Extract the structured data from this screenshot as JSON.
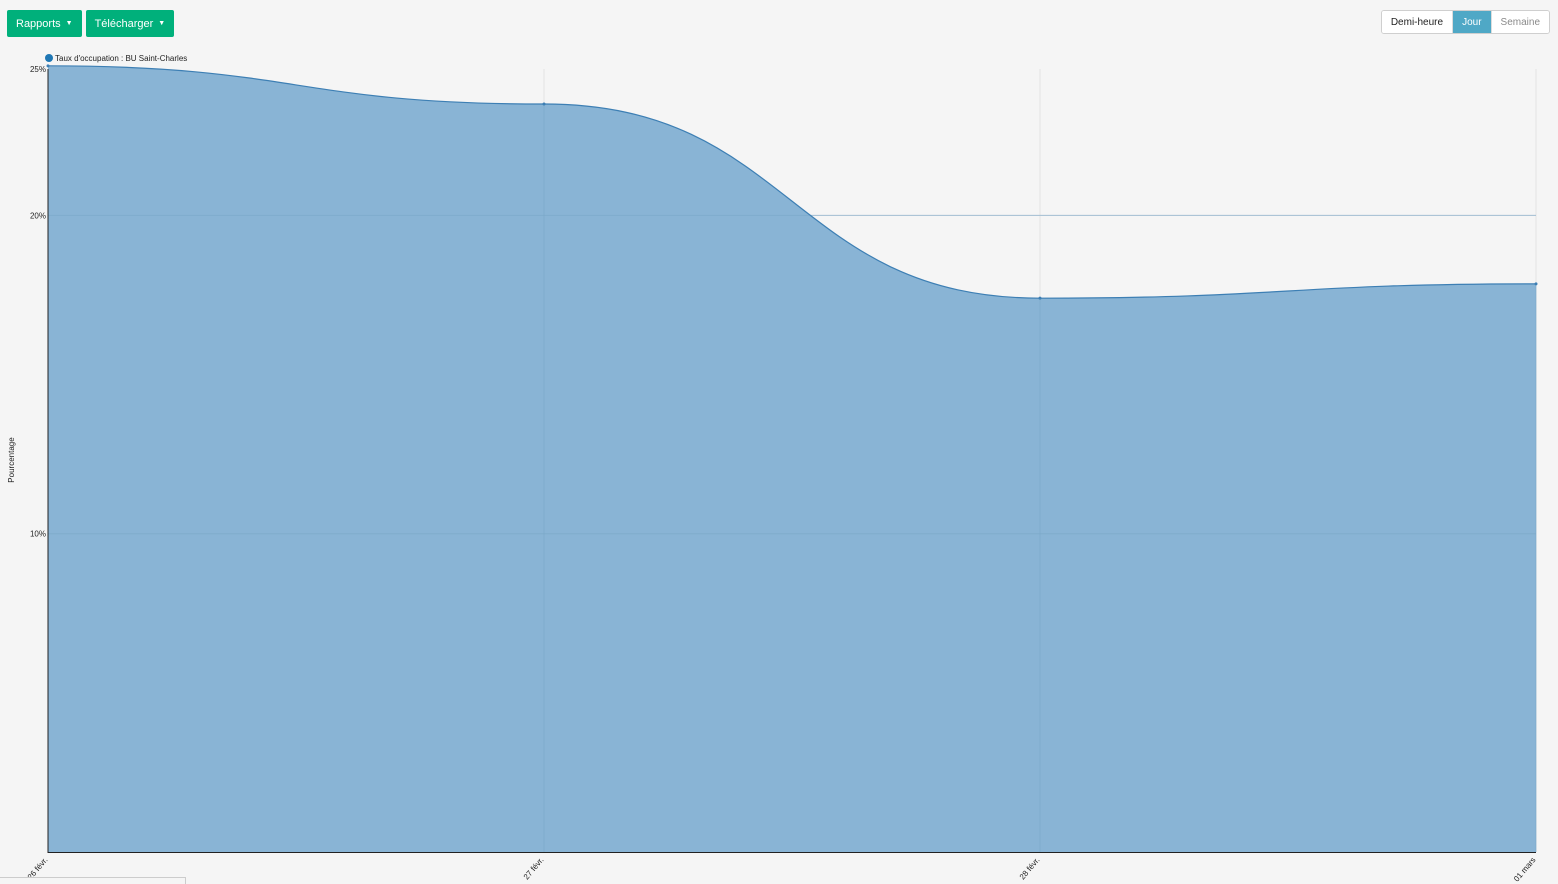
{
  "toolbar": {
    "rapports_label": "Rapports",
    "telecharger_label": "Télécharger",
    "granularity": [
      "Demi-heure",
      "Jour",
      "Semaine"
    ],
    "active_granularity": "Jour"
  },
  "chart_data": {
    "type": "area",
    "title": "",
    "xlabel": "",
    "ylabel": "Pourcentage",
    "legend": {
      "position": "top-left",
      "entries": [
        "Taux d'occupation : BU Saint-Charles"
      ]
    },
    "categories": [
      "26 févr.",
      "27 févr.",
      "28 févr.",
      "01 mars"
    ],
    "series": [
      {
        "name": "Taux d'occupation : BU Saint-Charles",
        "values": [
          24.7,
          23.5,
          17.4,
          17.85
        ],
        "color": "#1f77b4"
      }
    ],
    "ylim": [
      0,
      24.6
    ],
    "yticks": [
      10,
      20,
      25
    ],
    "ytick_labels": [
      "10%",
      "20%",
      "25%"
    ],
    "grid": true,
    "fill_color": "#89b4d5",
    "line_color": "#3d7fb4"
  }
}
